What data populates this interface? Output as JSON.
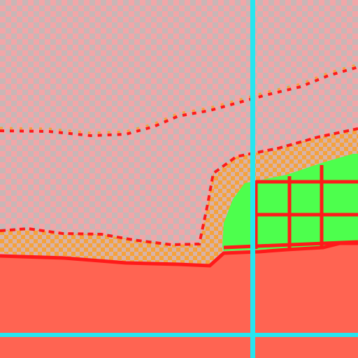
{
  "scene": {
    "palette": {
      "sky_a": "#f2a6a8",
      "sky_b": "#c8b6b6",
      "ground": "#ff6452",
      "border_orange": "#f5a23a",
      "border_red": "#ff1a1a",
      "grass_green": "#4dff4d",
      "cursor_cyan": "#25e6f0"
    },
    "icons": {
      "cursor": "crosshair-icon"
    }
  }
}
